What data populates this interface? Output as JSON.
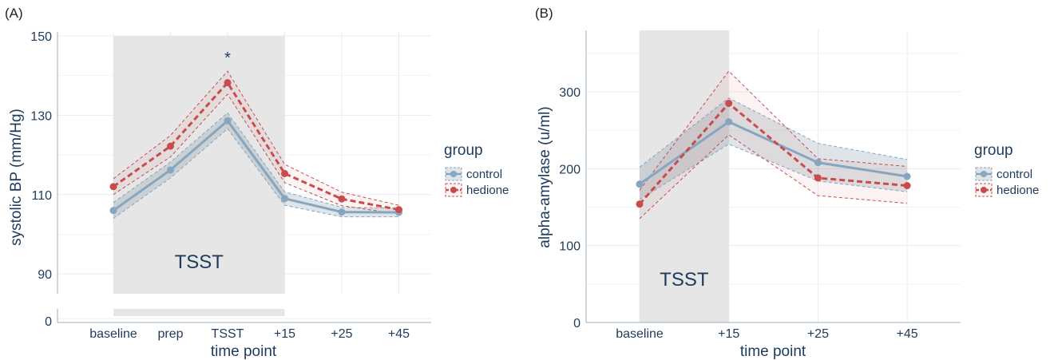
{
  "colors": {
    "control": "#86a6bf",
    "hedione": "#c94c4c",
    "shade": "#e6e6e6",
    "text": "#1d3b5c"
  },
  "chart_data": [
    {
      "panel_label": "(A)",
      "type": "line",
      "categories": [
        "baseline",
        "prep",
        "TSST",
        "+15",
        "+25",
        "+45"
      ],
      "xlabel": "time point",
      "ylabel": "systolic BP (mm/Hg)",
      "ylim": [
        85,
        151
      ],
      "yticks": [
        90,
        110,
        130,
        150
      ],
      "broken_axis_lower_tick": 0,
      "grid": true,
      "shaded_region": {
        "from": "baseline",
        "to": "+15",
        "label": "TSST"
      },
      "annotation": {
        "text": "*",
        "x": "TSST"
      },
      "legend": {
        "title": "group",
        "position": "right",
        "entries": [
          "control",
          "hedione"
        ]
      },
      "series": [
        {
          "name": "control",
          "values": [
            106.0,
            116.2,
            128.6,
            109.0,
            105.6,
            105.5
          ],
          "lower": [
            104.0,
            114.2,
            126.6,
            107.3,
            104.4,
            104.4
          ],
          "upper": [
            108.0,
            118.2,
            130.6,
            110.7,
            106.8,
            106.6
          ]
        },
        {
          "name": "hedione",
          "values": [
            112.0,
            122.2,
            138.2,
            115.3,
            108.9,
            106.2
          ],
          "lower": [
            110.0,
            119.5,
            135.3,
            113.0,
            107.2,
            105.1
          ],
          "upper": [
            114.0,
            124.9,
            141.1,
            117.6,
            110.6,
            107.3
          ]
        }
      ]
    },
    {
      "panel_label": "(B)",
      "type": "line",
      "categories": [
        "baseline",
        "+15",
        "+25",
        "+45"
      ],
      "xlabel": "time point",
      "ylabel": "alpha-amylase (u/ml)",
      "ylim": [
        0,
        380
      ],
      "yticks": [
        0,
        100,
        200,
        300
      ],
      "grid": true,
      "shaded_region": {
        "from": "baseline",
        "to": "+15",
        "label": "TSST"
      },
      "legend": {
        "title": "group",
        "position": "right",
        "entries": [
          "control",
          "hedione"
        ]
      },
      "series": [
        {
          "name": "control",
          "values": [
            180,
            261,
            208,
            190
          ],
          "lower": [
            160,
            232,
            184,
            170
          ],
          "upper": [
            202,
            292,
            233,
            212
          ]
        },
        {
          "name": "hedione",
          "values": [
            154,
            285,
            188,
            178
          ],
          "lower": [
            135,
            244,
            165,
            155
          ],
          "upper": [
            172,
            327,
            213,
            203
          ]
        }
      ]
    }
  ]
}
